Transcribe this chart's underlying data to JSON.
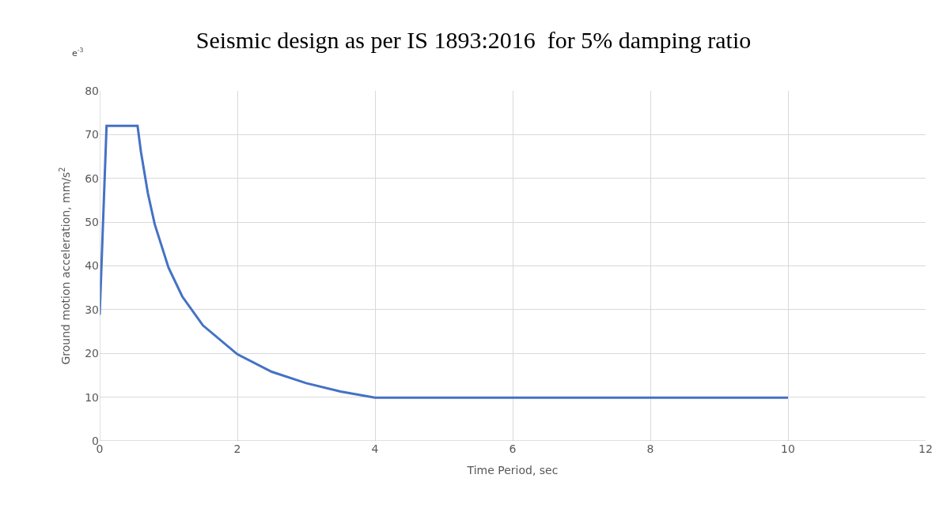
{
  "chart_data": {
    "type": "line",
    "title": "Seismic design as per IS 1893:2016  for 5% damping ratio",
    "xlabel": "Time Period, sec",
    "ylabel": "Ground motion acceleration, mm/s$^{2}$",
    "annotations": [
      "e$^{-3}$"
    ],
    "x": [
      0,
      0.1,
      0.55,
      0.6,
      0.7,
      0.8,
      1,
      1.2,
      1.5,
      2,
      2.5,
      3,
      3.5,
      4,
      10
    ],
    "series": [
      {
        "color": "#4472c4",
        "values": [
          28.8,
          72,
          72,
          66,
          56.6,
          49.5,
          39.6,
          33,
          26.4,
          19.8,
          15.8,
          13.2,
          11.3,
          9.9,
          9.9
        ]
      }
    ],
    "xlim": [
      0,
      12
    ],
    "xticks": [
      0,
      2,
      4,
      6,
      8,
      10,
      12
    ],
    "ylim": [
      0,
      80
    ],
    "yticks": [
      0,
      10,
      20,
      30,
      40,
      50,
      60,
      70,
      80
    ],
    "grid": true,
    "legend": false,
    "marker": "none",
    "line_style": "solid"
  }
}
